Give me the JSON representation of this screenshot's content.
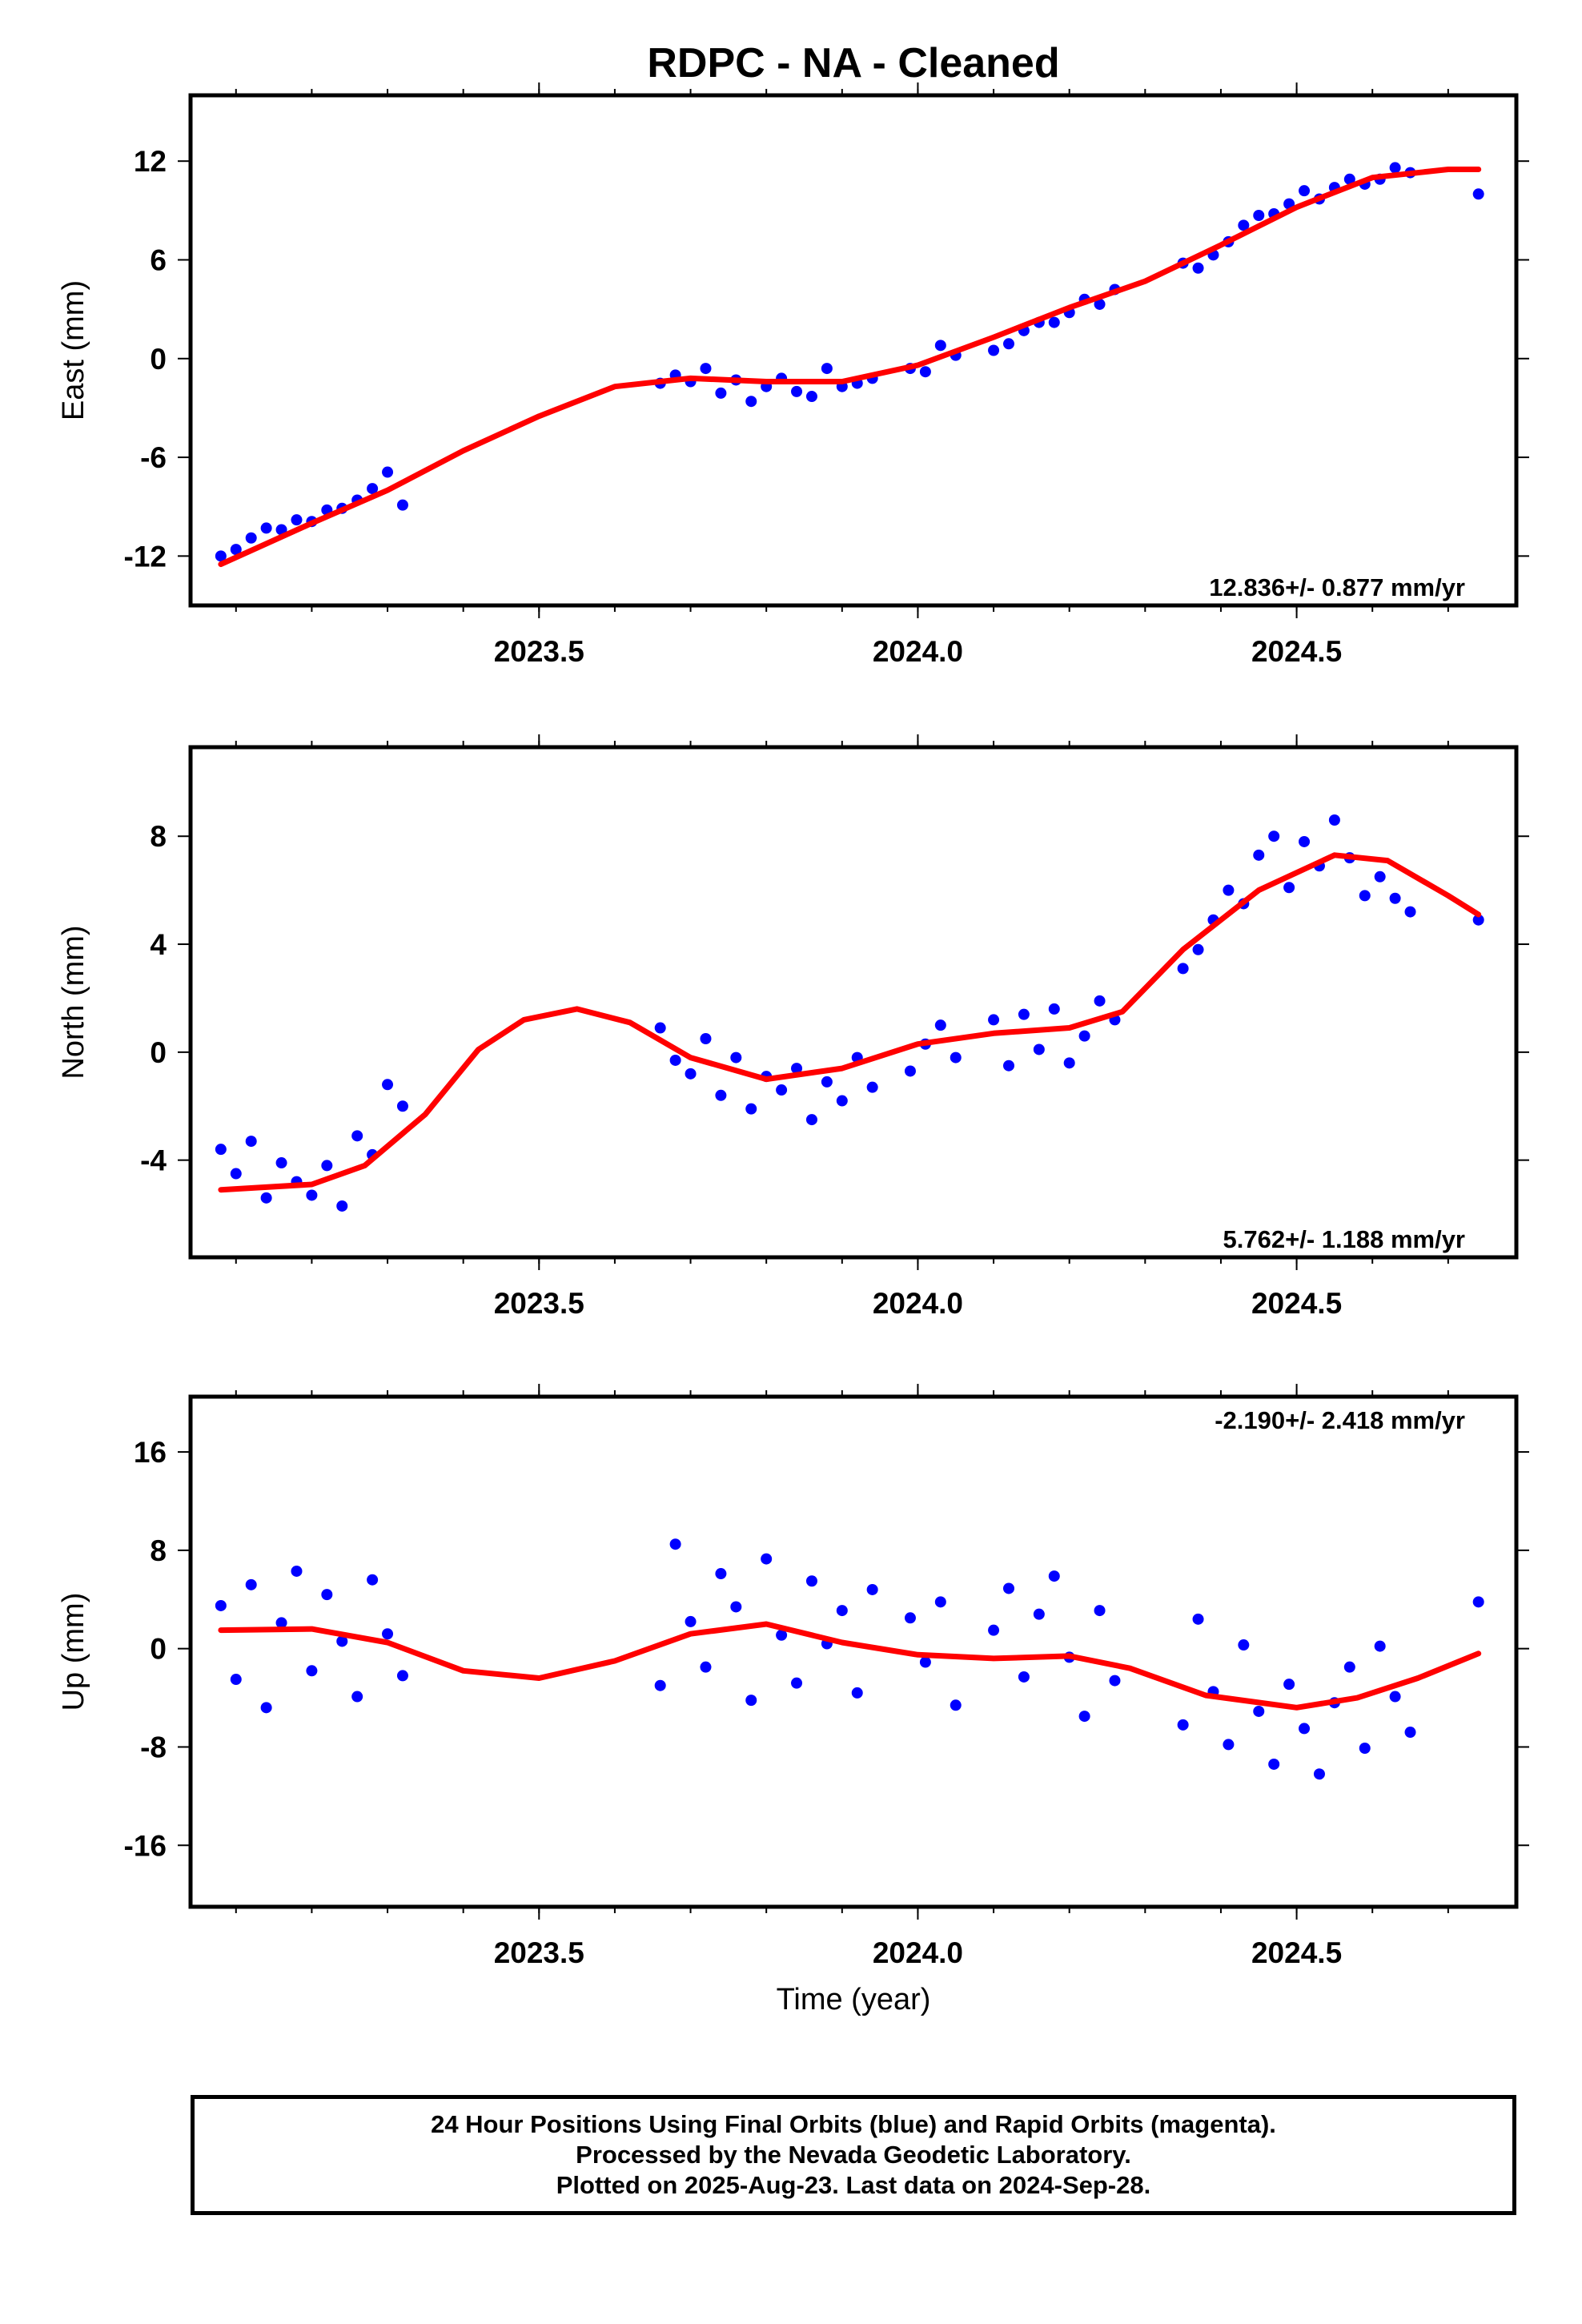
{
  "title": "RDPC  - NA - Cleaned",
  "colors": {
    "final_orbits": "#0000ff",
    "rapid_orbits": "#ff00ff",
    "fit": "#ff0000",
    "frame": "#000000"
  },
  "chart_data": [
    {
      "type": "scatter",
      "ylabel": "East (mm)",
      "xlabel": "",
      "xlim": [
        2023.04,
        2024.79
      ],
      "ylim": [
        -15,
        16
      ],
      "xticks": [
        2023.5,
        2024.0,
        2024.5
      ],
      "xtick_labels": [
        "2023.5",
        "2024.0",
        "2024.5"
      ],
      "yticks": [
        -12,
        -6,
        0,
        6,
        12
      ],
      "ytick_labels": [
        "-12",
        "-6",
        "0",
        "6",
        "12"
      ],
      "rate_label": "12.836+/- 0.877 mm/yr",
      "series": [
        {
          "x": [
            2023.08,
            2023.1,
            2023.12,
            2023.14,
            2023.16,
            2023.18,
            2023.2,
            2023.22,
            2023.24,
            2023.26,
            2023.28,
            2023.3,
            2023.32,
            2023.66,
            2023.68,
            2023.7,
            2023.72,
            2023.74,
            2023.76,
            2023.78,
            2023.8,
            2023.82,
            2023.84,
            2023.86,
            2023.88,
            2023.9,
            2023.92,
            2023.94,
            2023.99,
            2024.01,
            2024.03,
            2024.05,
            2024.1,
            2024.12,
            2024.14,
            2024.16,
            2024.18,
            2024.2,
            2024.22,
            2024.24,
            2024.26,
            2024.35,
            2024.37,
            2024.39,
            2024.41,
            2024.43,
            2024.45,
            2024.47,
            2024.49,
            2024.51,
            2024.53,
            2024.55,
            2024.57,
            2024.59,
            2024.61,
            2024.63,
            2024.65,
            2024.74
          ],
          "y": [
            -12.0,
            -11.6,
            -10.9,
            -10.3,
            -10.4,
            -9.8,
            -9.9,
            -9.2,
            -9.1,
            -8.6,
            -7.9,
            -6.9,
            -8.9,
            -1.5,
            -1.0,
            -1.4,
            -0.6,
            -2.1,
            -1.3,
            -2.6,
            -1.7,
            -1.2,
            -2.0,
            -2.3,
            -0.6,
            -1.7,
            -1.5,
            -1.2,
            -0.6,
            -0.8,
            0.8,
            0.2,
            0.5,
            0.9,
            1.7,
            2.2,
            2.2,
            2.8,
            3.6,
            3.3,
            4.2,
            5.8,
            5.5,
            6.3,
            7.1,
            8.1,
            8.7,
            8.8,
            9.4,
            10.2,
            9.7,
            10.4,
            10.9,
            10.6,
            10.9,
            11.6,
            11.3,
            10.0
          ]
        }
      ],
      "fit": {
        "x": [
          2023.08,
          2023.2,
          2023.3,
          2023.4,
          2023.5,
          2023.6,
          2023.7,
          2023.8,
          2023.9,
          2024.0,
          2024.1,
          2024.2,
          2024.3,
          2024.4,
          2024.5,
          2024.6,
          2024.7,
          2024.74
        ],
        "y": [
          -12.5,
          -10.0,
          -8.0,
          -5.6,
          -3.5,
          -1.7,
          -1.2,
          -1.4,
          -1.4,
          -0.4,
          1.3,
          3.1,
          4.7,
          6.9,
          9.2,
          11.0,
          11.5,
          11.5
        ]
      }
    },
    {
      "type": "scatter",
      "ylabel": "North (mm)",
      "xlabel": "",
      "xlim": [
        2023.04,
        2024.79
      ],
      "ylim": [
        -7.6,
        11.3
      ],
      "xticks": [
        2023.5,
        2024.0,
        2024.5
      ],
      "xtick_labels": [
        "2023.5",
        "2024.0",
        "2024.5"
      ],
      "yticks": [
        -4,
        0,
        4,
        8
      ],
      "ytick_labels": [
        "-4",
        "0",
        "4",
        "8"
      ],
      "rate_label": "5.762+/- 1.188 mm/yr",
      "series": [
        {
          "x": [
            2023.08,
            2023.1,
            2023.12,
            2023.14,
            2023.16,
            2023.18,
            2023.2,
            2023.22,
            2023.24,
            2023.26,
            2023.28,
            2023.3,
            2023.32,
            2023.66,
            2023.68,
            2023.7,
            2023.72,
            2023.74,
            2023.76,
            2023.78,
            2023.8,
            2023.82,
            2023.84,
            2023.86,
            2023.88,
            2023.9,
            2023.92,
            2023.94,
            2023.99,
            2024.01,
            2024.03,
            2024.05,
            2024.1,
            2024.12,
            2024.14,
            2024.16,
            2024.18,
            2024.2,
            2024.22,
            2024.24,
            2024.26,
            2024.35,
            2024.37,
            2024.39,
            2024.41,
            2024.43,
            2024.45,
            2024.47,
            2024.49,
            2024.51,
            2024.53,
            2024.55,
            2024.57,
            2024.59,
            2024.61,
            2024.63,
            2024.65,
            2024.74
          ],
          "y": [
            -3.6,
            -4.5,
            -3.3,
            -5.4,
            -4.1,
            -4.8,
            -5.3,
            -4.2,
            -5.7,
            -3.1,
            -3.8,
            -1.2,
            -2.0,
            0.9,
            -0.3,
            -0.8,
            0.5,
            -1.6,
            -0.2,
            -2.1,
            -0.9,
            -1.4,
            -0.6,
            -2.5,
            -1.1,
            -1.8,
            -0.2,
            -1.3,
            -0.7,
            0.3,
            1.0,
            -0.2,
            1.2,
            -0.5,
            1.4,
            0.1,
            1.6,
            -0.4,
            0.6,
            1.9,
            1.2,
            3.1,
            3.8,
            4.9,
            6.0,
            5.5,
            7.3,
            8.0,
            6.1,
            7.8,
            6.9,
            8.6,
            7.2,
            5.8,
            6.5,
            5.7,
            5.2,
            4.9
          ]
        }
      ],
      "fit": {
        "x": [
          2023.08,
          2023.2,
          2023.27,
          2023.35,
          2023.42,
          2023.48,
          2023.55,
          2023.62,
          2023.7,
          2023.8,
          2023.9,
          2024.0,
          2024.1,
          2024.2,
          2024.27,
          2024.35,
          2024.45,
          2024.55,
          2024.62,
          2024.7,
          2024.74
        ],
        "y": [
          -5.1,
          -4.9,
          -4.2,
          -2.3,
          0.1,
          1.2,
          1.6,
          1.1,
          -0.2,
          -1.0,
          -0.6,
          0.3,
          0.7,
          0.9,
          1.5,
          3.8,
          6.0,
          7.3,
          7.1,
          5.8,
          5.1
        ]
      }
    },
    {
      "type": "scatter",
      "ylabel": "Up (mm)",
      "xlabel": "Time (year)",
      "xlim": [
        2023.04,
        2024.79
      ],
      "ylim": [
        -21,
        20.5
      ],
      "xticks": [
        2023.5,
        2024.0,
        2024.5
      ],
      "xtick_labels": [
        "2023.5",
        "2024.0",
        "2024.5"
      ],
      "yticks": [
        -16,
        -8,
        0,
        8,
        16
      ],
      "ytick_labels": [
        "-16",
        "-8",
        "0",
        "8",
        "16"
      ],
      "rate_label": "-2.190+/- 2.418 mm/yr",
      "series": [
        {
          "x": [
            2023.08,
            2023.1,
            2023.12,
            2023.14,
            2023.16,
            2023.18,
            2023.2,
            2023.22,
            2023.24,
            2023.26,
            2023.28,
            2023.3,
            2023.32,
            2023.66,
            2023.68,
            2023.7,
            2023.72,
            2023.74,
            2023.76,
            2023.78,
            2023.8,
            2023.82,
            2023.84,
            2023.86,
            2023.88,
            2023.9,
            2023.92,
            2023.94,
            2023.99,
            2024.01,
            2024.03,
            2024.05,
            2024.1,
            2024.12,
            2024.14,
            2024.16,
            2024.18,
            2024.2,
            2024.22,
            2024.24,
            2024.26,
            2024.35,
            2024.37,
            2024.39,
            2024.41,
            2024.43,
            2024.45,
            2024.47,
            2024.49,
            2024.51,
            2024.53,
            2024.55,
            2024.57,
            2024.59,
            2024.61,
            2024.63,
            2024.65,
            2024.74
          ],
          "y": [
            3.5,
            -2.5,
            5.2,
            -4.8,
            2.1,
            6.3,
            -1.8,
            4.4,
            0.6,
            -3.9,
            5.6,
            1.2,
            -2.2,
            -3.0,
            8.5,
            2.2,
            -1.5,
            6.1,
            3.4,
            -4.2,
            7.3,
            1.1,
            -2.8,
            5.5,
            0.4,
            3.1,
            -3.6,
            4.8,
            2.5,
            -1.1,
            3.8,
            -4.6,
            1.5,
            4.9,
            -2.3,
            2.8,
            5.9,
            -0.7,
            -5.5,
            3.1,
            -2.6,
            -6.2,
            2.4,
            -3.5,
            -7.8,
            0.3,
            -5.1,
            -9.4,
            -2.9,
            -6.5,
            -10.2,
            -4.4,
            -1.5,
            -8.1,
            0.2,
            -3.9,
            -6.8,
            3.8
          ]
        }
      ],
      "fit": {
        "x": [
          2023.08,
          2023.2,
          2023.3,
          2023.4,
          2023.5,
          2023.6,
          2023.7,
          2023.8,
          2023.9,
          2024.0,
          2024.1,
          2024.2,
          2024.28,
          2024.38,
          2024.5,
          2024.58,
          2024.66,
          2024.74
        ],
        "y": [
          1.5,
          1.6,
          0.5,
          -1.8,
          -2.4,
          -1.0,
          1.2,
          2.0,
          0.5,
          -0.5,
          -0.8,
          -0.6,
          -1.6,
          -3.8,
          -4.8,
          -4.0,
          -2.4,
          -0.4
        ]
      }
    }
  ],
  "footer": {
    "line1": "24 Hour Positions Using Final Orbits (blue) and Rapid Orbits (magenta).",
    "line2": "Processed by the Nevada Geodetic Laboratory.",
    "line3": "Plotted on 2025-Aug-23. Last data on 2024-Sep-28."
  }
}
